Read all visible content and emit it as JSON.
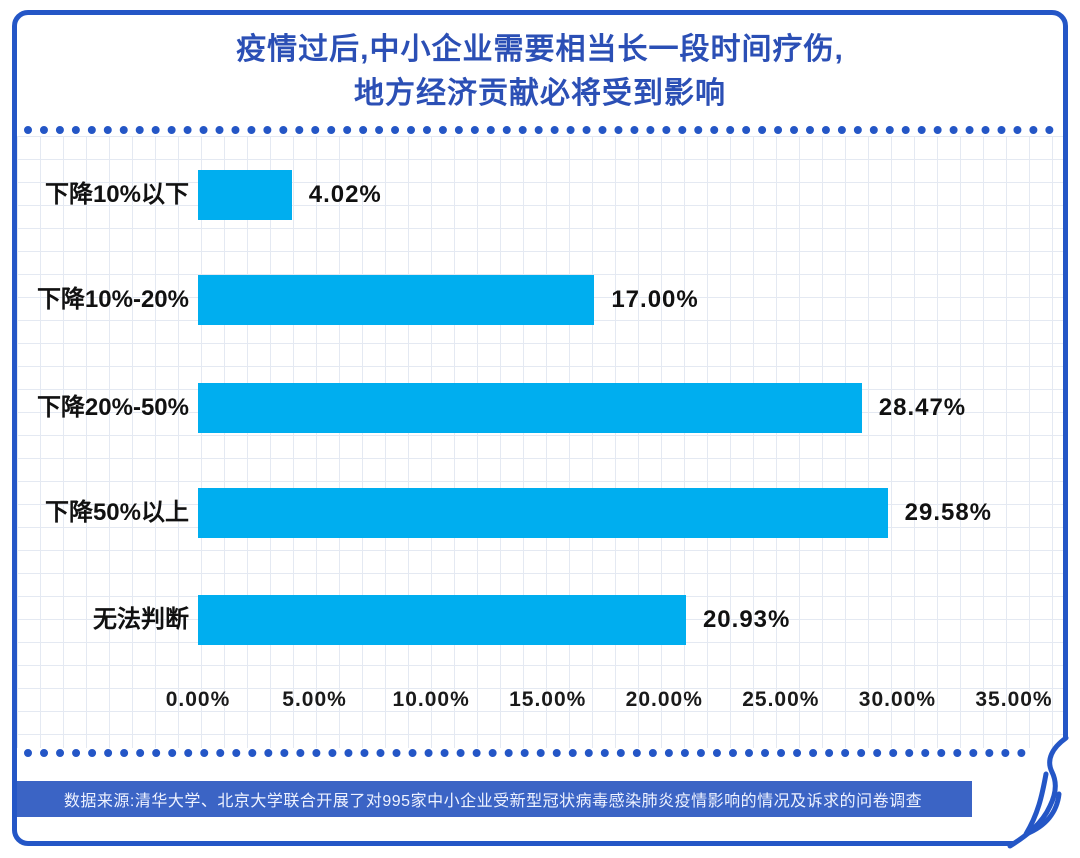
{
  "title": {
    "line1": "疫情过后,中小企业需要相当长一段时间疗伤,",
    "line2": "地方经济贡献必将受到影响"
  },
  "footer": {
    "text": "数据来源:清华大学、北京大学联合开展了对995家中小企业受新型冠状病毒感染肺炎疫情影响的情况及诉求的问卷调查"
  },
  "icons": {
    "page_curl": "page-curl-icon"
  },
  "colors": {
    "accent_blue": "#2456C6",
    "title_blue": "#2B4FB5",
    "bar_cyan": "#00AEEF",
    "footer_blue": "#3B64C5",
    "grid": "#e4e9f2"
  },
  "chart_data": {
    "type": "bar",
    "orientation": "horizontal",
    "title": "疫情过后,中小企业需要相当长一段时间疗伤,地方经济贡献必将受到影响",
    "categories": [
      "下降10%以下",
      "下降10%-20%",
      "下降20%-50%",
      "下降50%以上",
      "无法判断"
    ],
    "values": [
      4.02,
      17.0,
      28.47,
      29.58,
      20.93
    ],
    "value_labels": [
      "4.02%",
      "17.00%",
      "28.47%",
      "29.58%",
      "20.93%"
    ],
    "x_ticks": [
      "0.00%",
      "5.00%",
      "10.00%",
      "15.00%",
      "20.00%",
      "25.00%",
      "30.00%",
      "35.00%"
    ],
    "xlim": [
      0,
      35
    ],
    "grid": true,
    "legend": false
  }
}
